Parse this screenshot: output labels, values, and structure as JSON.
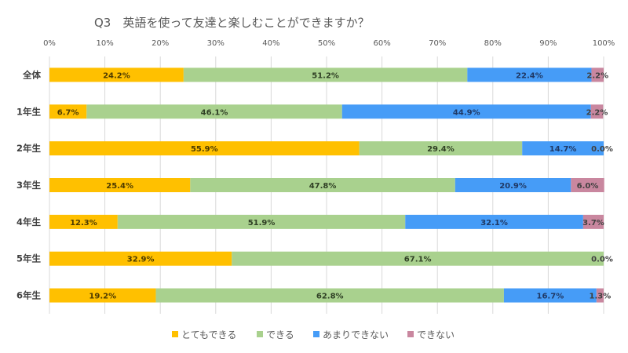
{
  "chart_data": {
    "type": "bar",
    "orientation": "horizontal",
    "stacked": "percent",
    "title": "Q3　英語を使って友達と楽しむことができますか？",
    "xlabel": "",
    "ylabel": "",
    "xlim": [
      0,
      100
    ],
    "x_ticks": [
      "0%",
      "10%",
      "20%",
      "30%",
      "40%",
      "50%",
      "60%",
      "70%",
      "80%",
      "90%",
      "100%"
    ],
    "grid": true,
    "legend_position": "bottom",
    "categories": [
      "全体",
      "1年生",
      "2年生",
      "3年生",
      "4年生",
      "5年生",
      "6年生"
    ],
    "series": [
      {
        "name": "とてもできる",
        "color": "#FFC000",
        "label_color": "#4d3b00",
        "values": [
          24.2,
          6.7,
          55.9,
          25.4,
          12.3,
          32.9,
          19.2
        ]
      },
      {
        "name": "できる",
        "color": "#A9D18E",
        "label_color": "#2f3f24",
        "values": [
          51.2,
          46.1,
          29.4,
          47.8,
          51.9,
          67.1,
          62.8
        ]
      },
      {
        "name": "あまりできない",
        "color": "#469CF7",
        "label_color": "#1f3864",
        "values": [
          22.4,
          44.9,
          14.7,
          20.9,
          32.1,
          0.0,
          16.7
        ]
      },
      {
        "name": "できない",
        "color": "#C9879F",
        "label_color": "#404040",
        "values": [
          2.2,
          2.2,
          0.0,
          6.0,
          3.7,
          0.0,
          1.3
        ]
      }
    ],
    "label_format": "{v}%"
  }
}
